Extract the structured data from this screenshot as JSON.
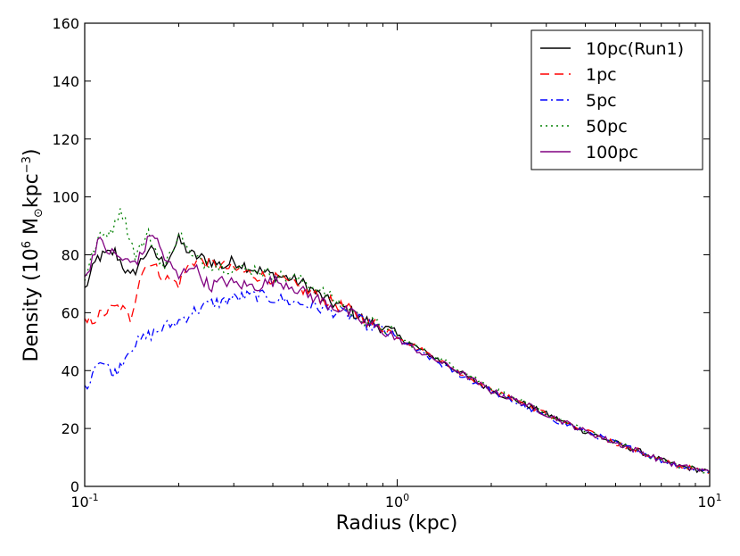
{
  "chart_data": {
    "type": "line",
    "title": "",
    "xlabel": "Radius (kpc)",
    "ylabel_parts": {
      "prefix": "Density (10",
      "exp": "6",
      "unit_m": " M",
      "sun": "⊙",
      "unit_rest": "kpc",
      "exp2": "−3",
      "suffix": ")"
    },
    "xscale": "log",
    "xlim": [
      0.1,
      10
    ],
    "ylim": [
      0,
      160
    ],
    "xticks": [
      {
        "base": "10",
        "exp": "-1"
      },
      {
        "base": "10",
        "exp": "0"
      },
      {
        "base": "10",
        "exp": "1"
      }
    ],
    "yticks": [
      "0",
      "20",
      "40",
      "60",
      "80",
      "100",
      "120",
      "140",
      "160"
    ],
    "legend_position": "top-right",
    "series": [
      {
        "name": "10pc(Run1)",
        "color": "#000000",
        "style": "solid",
        "points": [
          [
            0.1,
            68
          ],
          [
            0.11,
            79
          ],
          [
            0.125,
            81
          ],
          [
            0.14,
            72
          ],
          [
            0.16,
            82
          ],
          [
            0.18,
            77
          ],
          [
            0.2,
            85
          ],
          [
            0.22,
            80
          ],
          [
            0.25,
            78
          ],
          [
            0.28,
            76
          ],
          [
            0.3,
            78
          ],
          [
            0.35,
            75
          ],
          [
            0.4,
            73
          ],
          [
            0.45,
            72
          ],
          [
            0.5,
            70
          ],
          [
            0.6,
            64
          ],
          [
            0.7,
            61
          ],
          [
            0.8,
            57
          ],
          [
            0.9,
            55
          ],
          [
            1.0,
            52
          ],
          [
            1.2,
            47
          ],
          [
            1.5,
            41
          ],
          [
            2.0,
            33
          ],
          [
            2.5,
            29
          ],
          [
            3.0,
            25
          ],
          [
            4.0,
            19
          ],
          [
            5.0,
            15
          ],
          [
            6.0,
            12
          ],
          [
            7.0,
            9
          ],
          [
            8.0,
            7
          ],
          [
            10.0,
            5
          ]
        ]
      },
      {
        "name": "1pc",
        "color": "#ff0000",
        "style": "dashed",
        "points": [
          [
            0.1,
            56
          ],
          [
            0.12,
            61
          ],
          [
            0.13,
            62
          ],
          [
            0.14,
            58
          ],
          [
            0.15,
            72
          ],
          [
            0.16,
            78
          ],
          [
            0.18,
            72
          ],
          [
            0.2,
            70
          ],
          [
            0.22,
            78
          ],
          [
            0.25,
            77
          ],
          [
            0.3,
            75
          ],
          [
            0.35,
            73
          ],
          [
            0.4,
            72
          ],
          [
            0.45,
            70
          ],
          [
            0.5,
            68
          ],
          [
            0.6,
            64
          ],
          [
            0.7,
            61
          ],
          [
            0.8,
            57
          ],
          [
            0.9,
            55
          ],
          [
            1.0,
            52
          ],
          [
            1.2,
            47
          ],
          [
            1.5,
            41
          ],
          [
            2.0,
            33
          ],
          [
            2.5,
            29
          ],
          [
            3.0,
            25
          ],
          [
            4.0,
            19
          ],
          [
            5.0,
            15
          ],
          [
            6.0,
            12
          ],
          [
            7.0,
            9
          ],
          [
            8.0,
            7
          ],
          [
            10.0,
            5
          ]
        ]
      },
      {
        "name": "5pc",
        "color": "#0000ff",
        "style": "dashdot",
        "points": [
          [
            0.1,
            33
          ],
          [
            0.11,
            44
          ],
          [
            0.125,
            39
          ],
          [
            0.14,
            48
          ],
          [
            0.16,
            52
          ],
          [
            0.18,
            55
          ],
          [
            0.2,
            57
          ],
          [
            0.22,
            60
          ],
          [
            0.25,
            63
          ],
          [
            0.28,
            64
          ],
          [
            0.3,
            65
          ],
          [
            0.35,
            66
          ],
          [
            0.4,
            65
          ],
          [
            0.45,
            64
          ],
          [
            0.5,
            63
          ],
          [
            0.6,
            61
          ],
          [
            0.7,
            59
          ],
          [
            0.8,
            56
          ],
          [
            0.9,
            54
          ],
          [
            1.0,
            51
          ],
          [
            1.2,
            46
          ],
          [
            1.5,
            40
          ],
          [
            2.0,
            33
          ],
          [
            2.5,
            28
          ],
          [
            3.0,
            24
          ],
          [
            4.0,
            19
          ],
          [
            5.0,
            15
          ],
          [
            6.0,
            12
          ],
          [
            7.0,
            9
          ],
          [
            8.0,
            7
          ],
          [
            10.0,
            5
          ]
        ]
      },
      {
        "name": "50pc",
        "color": "#008000",
        "style": "dotted",
        "points": [
          [
            0.1,
            72
          ],
          [
            0.11,
            85
          ],
          [
            0.125,
            90
          ],
          [
            0.13,
            97
          ],
          [
            0.145,
            80
          ],
          [
            0.16,
            87
          ],
          [
            0.18,
            75
          ],
          [
            0.2,
            88
          ],
          [
            0.22,
            79
          ],
          [
            0.25,
            77
          ],
          [
            0.3,
            75
          ],
          [
            0.35,
            75
          ],
          [
            0.4,
            73
          ],
          [
            0.45,
            72
          ],
          [
            0.5,
            71
          ],
          [
            0.6,
            66
          ],
          [
            0.7,
            61
          ],
          [
            0.8,
            57
          ],
          [
            0.9,
            55
          ],
          [
            1.0,
            52
          ],
          [
            1.2,
            47
          ],
          [
            1.5,
            42
          ],
          [
            2.0,
            34
          ],
          [
            2.5,
            29
          ],
          [
            3.0,
            25
          ],
          [
            4.0,
            19
          ],
          [
            5.0,
            15
          ],
          [
            6.0,
            12
          ],
          [
            7.0,
            9
          ],
          [
            8.0,
            7
          ],
          [
            10.0,
            5
          ]
        ]
      },
      {
        "name": "100pc",
        "color": "#800080",
        "style": "solid",
        "points": [
          [
            0.1,
            71
          ],
          [
            0.11,
            85
          ],
          [
            0.12,
            81
          ],
          [
            0.14,
            77
          ],
          [
            0.15,
            79
          ],
          [
            0.165,
            88
          ],
          [
            0.18,
            79
          ],
          [
            0.2,
            72
          ],
          [
            0.22,
            77
          ],
          [
            0.25,
            69
          ],
          [
            0.28,
            71
          ],
          [
            0.3,
            70
          ],
          [
            0.35,
            69
          ],
          [
            0.4,
            71
          ],
          [
            0.45,
            70
          ],
          [
            0.5,
            67
          ],
          [
            0.6,
            63
          ],
          [
            0.7,
            60
          ],
          [
            0.8,
            56
          ],
          [
            0.9,
            54
          ],
          [
            1.0,
            51
          ],
          [
            1.2,
            46
          ],
          [
            1.5,
            41
          ],
          [
            2.0,
            33
          ],
          [
            2.5,
            29
          ],
          [
            3.0,
            25
          ],
          [
            4.0,
            19
          ],
          [
            5.0,
            15
          ],
          [
            6.0,
            12
          ],
          [
            7.0,
            9
          ],
          [
            8.0,
            7
          ],
          [
            10.0,
            5
          ]
        ]
      }
    ]
  }
}
